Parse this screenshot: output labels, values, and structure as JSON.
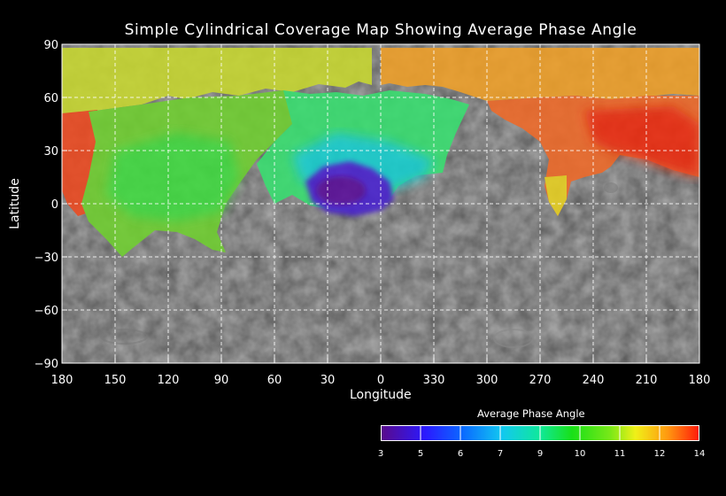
{
  "map": {
    "title": "Simple Cylindrical Coverage Map Showing Average Phase Angle",
    "xlabel": "Longitude",
    "ylabel": "Latitude",
    "projection": "simple cylindrical",
    "lon_ticks": [
      "180",
      "150",
      "120",
      "90",
      "60",
      "30",
      "0",
      "330",
      "300",
      "270",
      "240",
      "210",
      "180"
    ],
    "lat_ticks": [
      "90",
      "60",
      "30",
      "0",
      "−30",
      "−60",
      "−90"
    ],
    "lon_range_west_to_east": [
      180,
      -180
    ],
    "lat_range": [
      -90,
      90
    ],
    "grid": true,
    "grid_style": "dashed white",
    "basemap": "grayscale cratered surface"
  },
  "colorbar": {
    "title": "Average Phase Angle",
    "ticks": [
      "3",
      "5",
      "6",
      "7",
      "9",
      "10",
      "11",
      "12",
      "14"
    ],
    "colors": [
      "#5a0a8a",
      "#2a1aff",
      "#0a6cff",
      "#12c8f0",
      "#10e89a",
      "#18e018",
      "#78e818",
      "#f0f018",
      "#ff9a10",
      "#ff1a0a"
    ]
  },
  "coverage": [
    {
      "region": "north-west polar band",
      "phase": 11
    },
    {
      "region": "north-east polar band",
      "phase": 12
    },
    {
      "region": "western limb",
      "phase": 13
    },
    {
      "region": "west-central",
      "phase": 10
    },
    {
      "region": "central north",
      "phase": 9
    },
    {
      "region": "central south",
      "phase": 4
    },
    {
      "region": "eastern highlands",
      "phase": 13
    }
  ]
}
